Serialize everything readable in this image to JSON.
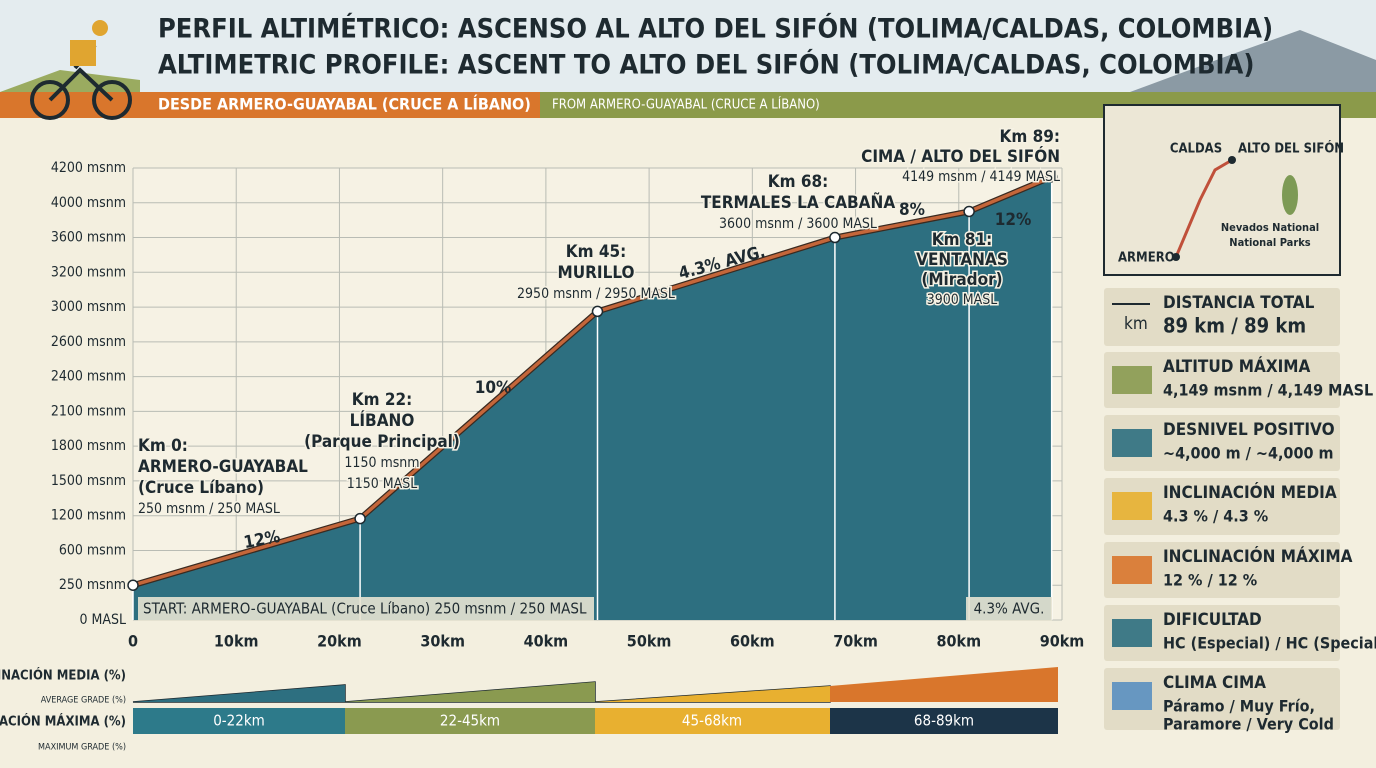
{
  "header": {
    "title_es": "PERFIL ALTIMÉTRICO: ASCENSO AL ALTO DEL SIFÓN (TOLIMA/CALDAS, COLOMBIA)",
    "title_en": "ALTIMETRIC PROFILE: ASCENT TO ALTO DEL SIFÓN (TOLIMA/CALDAS, COLOMBIA)",
    "subtitle_es": "DESDE ARMERO-GUAYABAL (CRUCE A LÍBANO)",
    "subtitle_en": "FROM ARMERO-GUAYABAL (CRUCE A LÍBANO)"
  },
  "chart_data": {
    "type": "area",
    "x": [
      0,
      22,
      45,
      68,
      81,
      89
    ],
    "values": [
      250,
      1150,
      2950,
      3600,
      3900,
      4149
    ],
    "color": "#2d6f80",
    "line_color": "#c4663a",
    "xlim": [
      0,
      90
    ],
    "xticks": [
      0,
      {
        "value": 10,
        "label": "10km"
      },
      {
        "value": 20,
        "label": "20km"
      },
      {
        "value": 30,
        "label": "30km"
      },
      {
        "value": 40,
        "label": "40km"
      },
      {
        "value": 50,
        "label": "50km"
      },
      {
        "value": 60,
        "label": "60km"
      },
      {
        "value": 70,
        "label": "70km"
      },
      {
        "value": 80,
        "label": "80km"
      },
      {
        "value": 90,
        "label": "90km"
      }
    ],
    "ylim": [
      0,
      4200
    ],
    "yticks": [
      {
        "value": 0,
        "label": "0 MASL"
      },
      {
        "value": 250,
        "label": "250 msnm"
      },
      {
        "value": 600,
        "label": "600 msnm"
      },
      {
        "value": 1200,
        "label": "1200 msnm"
      },
      {
        "value": 1500,
        "label": "1500 msnm"
      },
      {
        "value": 1800,
        "label": "1800 msnm"
      },
      {
        "value": 2100,
        "label": "2100 msnm"
      },
      {
        "value": 2400,
        "label": "2400 msnm"
      },
      {
        "value": 2600,
        "label": "2600 msnm"
      },
      {
        "value": 3000,
        "label": "3000 msnm"
      },
      {
        "value": 3200,
        "label": "3200 msnm"
      },
      {
        "value": 3600,
        "label": "3600 msnm"
      },
      {
        "value": 4000,
        "label": "4000 msnm"
      },
      {
        "value": 4200,
        "label": "4200 msnm"
      }
    ],
    "grid": true,
    "point_labels": [
      [
        "Km 0:",
        "ARMERO-GUAYABAL",
        "(Cruce Líbano)",
        "250 msnm / 250 MASL"
      ],
      [
        "Km 22:",
        "LÍBANO",
        "(Parque Principal)",
        "1150 msnm",
        "1150 MASL"
      ],
      [
        "Km 45:",
        "MURILLO",
        "2950 msnm / 2950 MASL"
      ],
      [
        "Km 68:",
        "TERMALES LA CABAÑA",
        "3600 msnm / 3600 MASL"
      ],
      [
        "Km 81:",
        "VENTANAS",
        "(Mirador)",
        "3900 MASL"
      ],
      [
        "Km 89:",
        "CIMA / ALTO DEL SIFÓN",
        "4149 msnm / 4149 MASL"
      ]
    ],
    "grade_labels": [
      "12%",
      "10%",
      "4.3% AVG.",
      "8%",
      "12%"
    ],
    "start_note": "START: ARMERO-GUAYABAL (Cruce Líbano) 250 msnm / 250 MASL",
    "avg_note": "4.3% AVG."
  },
  "grades": {
    "avg_label_es": "INCLINACIÓN MEDIA (%)",
    "avg_label_en": "AVERAGE GRADE (%)",
    "max_label_es": "INCLINACIÓN MÁXIMA (%)",
    "max_label_en": "MAXIMUM GRADE (%)",
    "segments": [
      "0-22km",
      "22-45km",
      "45-68km",
      "68-89km"
    ]
  },
  "map": {
    "labels": [
      "CALDAS",
      "ALTO DEL SIFÓN",
      "Nevados National",
      "National Parks",
      "ARMERO"
    ]
  },
  "stats": {
    "unit_icon": "km",
    "items": [
      {
        "title": "DISTANCIA TOTAL",
        "value": "89 km / 89 km"
      },
      {
        "title": "ALTITUD MÁXIMA",
        "value": "4,149 msnm / 4,149 MASL"
      },
      {
        "title": "DESNIVEL POSITIVO",
        "value": "~4,000 m / ~4,000 m"
      },
      {
        "title": "INCLINACIÓN MEDIA",
        "value": "4.3 % / 4.3 %"
      },
      {
        "title": "INCLINACIÓN MÁXIMA",
        "value": "12 % / 12 %"
      },
      {
        "title": "DIFICULTAD",
        "value": "HC (Especial) / HC (Special)"
      },
      {
        "title": "CLIMA CIMA",
        "value": "Páramo / Muy Frío,",
        "value2": "Paramore / Very Cold"
      }
    ]
  }
}
